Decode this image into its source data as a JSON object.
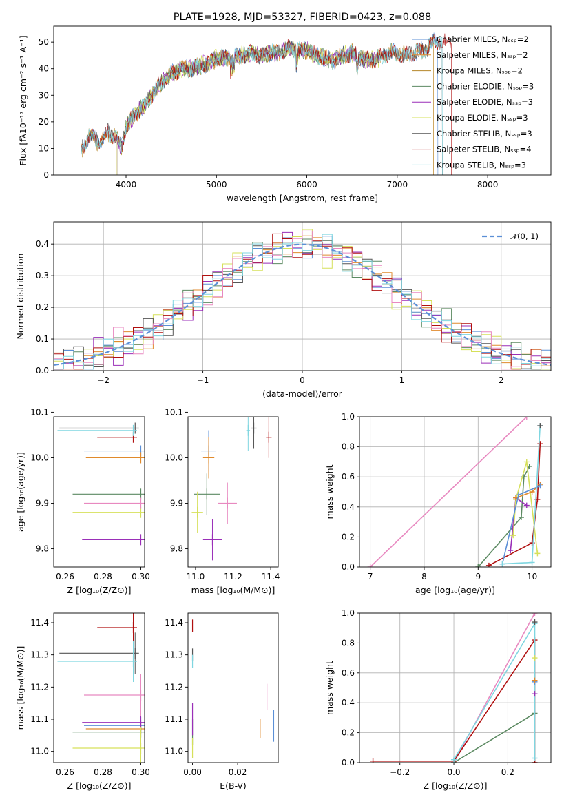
{
  "chart_data": [
    {
      "panel": "spectrum",
      "type": "line",
      "title": "PLATE=1928, MJD=53327, FIBERID=0423, z=0.088",
      "xlabel": "wavelength [Angstrom, rest frame]",
      "ylabel": "Flux [fλ10⁻¹⁷ erg cm⁻² s⁻¹ A⁻¹]",
      "xlim": [
        3200,
        8700
      ],
      "ylim": [
        0,
        56
      ],
      "xticks": [
        4000,
        5000,
        6000,
        7000,
        8000
      ],
      "yticks": [
        0,
        10,
        20,
        30,
        40,
        50
      ],
      "x": [
        3500,
        3600,
        3700,
        3800,
        3900,
        3950,
        4000,
        4100,
        4200,
        4300,
        4400,
        4500,
        4600,
        4700,
        4800,
        4900,
        5000,
        5100,
        5200,
        5300,
        5400,
        5500,
        5600,
        5700,
        5800,
        5900,
        6000,
        6100,
        6200,
        6300,
        6400,
        6500,
        6600,
        6700,
        6800,
        6900,
        7000,
        7100,
        7200,
        7300,
        7400,
        7500,
        7600
      ],
      "series": [
        {
          "name": "Chabrier MILES, Nₛₛₚ=2",
          "color": "#5b8fd6",
          "x_start": 3500,
          "x_end": 7450
        },
        {
          "name": "Salpeter MILES, Nₛₛₚ=2",
          "color": "#e08a2c",
          "x_start": 3500,
          "x_end": 7400
        },
        {
          "name": "Kroupa MILES, Nₛₛₚ=2",
          "color": "#b5862a",
          "x_start": 3500,
          "x_end": 7400
        },
        {
          "name": "Chabrier ELODIE, Nₛₛₚ=3",
          "color": "#5c8a62",
          "x_start": 3900,
          "x_end": 6800
        },
        {
          "name": "Salpeter ELODIE, Nₛₛₚ=3",
          "color": "#9a2fb8",
          "x_start": 3900,
          "x_end": 6800
        },
        {
          "name": "Kroupa ELODIE, Nₛₛₚ=3",
          "color": "#d6e05a",
          "x_start": 3900,
          "x_end": 6800
        },
        {
          "name": "Chabrier STELIB, Nₛₛₚ=3",
          "color": "#555555",
          "x_start": 3500,
          "x_end": 7500
        },
        {
          "name": "Salpeter STELIB, Nₛₛₚ=4",
          "color": "#b01010",
          "x_start": 3500,
          "x_end": 7600
        },
        {
          "name": "Kroupa STELIB, Nₛₛₚ=3",
          "color": "#7fd6e0",
          "x_start": 3500,
          "x_end": 7500
        }
      ],
      "flux": [
        9,
        15,
        12,
        16,
        14,
        10,
        18,
        23,
        26,
        31,
        35,
        38,
        40,
        40,
        41,
        42,
        44,
        44,
        45,
        45,
        46,
        45,
        46,
        46,
        48,
        47,
        47,
        45,
        44,
        43,
        45,
        46,
        44,
        43,
        44,
        46,
        46,
        45,
        46,
        47,
        50,
        50,
        49
      ],
      "legend": "upper right"
    },
    {
      "panel": "residuals",
      "type": "line",
      "xlabel": "(data-model)/error",
      "ylabel": "Normed distribution",
      "xlim": [
        -2.5,
        2.5
      ],
      "ylim": [
        0,
        0.47
      ],
      "xticks": [
        -2,
        -1,
        0,
        1,
        2
      ],
      "yticks": [
        0.0,
        0.1,
        0.2,
        0.3,
        0.4
      ],
      "grid": true,
      "reference": {
        "name": "𝒩(0, 1)",
        "color": "#5b8fd6",
        "style": "dashed",
        "mean": 0,
        "sd": 1
      },
      "hist_edges_start": -2.5,
      "hist_bin_width": 0.1,
      "histograms": [
        {
          "color": "#5b8fd6",
          "offset": 0.0
        },
        {
          "color": "#e08a2c",
          "offset": 0.01
        },
        {
          "color": "#5c8a62",
          "offset": -0.015
        },
        {
          "color": "#9a2fb8",
          "offset": 0.02
        },
        {
          "color": "#d6e05a",
          "offset": -0.02
        },
        {
          "color": "#555555",
          "offset": 0.012
        },
        {
          "color": "#b01010",
          "offset": -0.01
        },
        {
          "color": "#e889c0",
          "offset": 0.025
        },
        {
          "color": "#7fd6e0",
          "offset": -0.005
        }
      ],
      "legend": "upper right"
    },
    {
      "panel": "age-vs-Z",
      "type": "scatter",
      "xlabel": "Z [log₁₀(Z/Z⊙)]",
      "ylabel": "age  [log₁₀(age/yr)]",
      "xlim": [
        0.254,
        0.302
      ],
      "ylim": [
        9.76,
        10.09
      ],
      "xticks": [
        0.26,
        0.28,
        0.3
      ],
      "yticks": [
        9.8,
        9.9,
        10.0,
        10.1
      ],
      "points": [
        {
          "color": "#5b8fd6",
          "x": 0.3,
          "y": 10.015,
          "xerr": 0.03
        },
        {
          "color": "#e08a2c",
          "x": 0.3,
          "y": 10.0,
          "xerr": 0.029
        },
        {
          "color": "#5c8a62",
          "x": 0.3,
          "y": 9.92,
          "xerr": 0.036
        },
        {
          "color": "#9a2fb8",
          "x": 0.3,
          "y": 9.82,
          "xerr": 0.031
        },
        {
          "color": "#d6e05a",
          "x": 0.3,
          "y": 9.88,
          "xerr": 0.036
        },
        {
          "color": "#555555",
          "x": 0.297,
          "y": 10.065,
          "xerr": 0.04
        },
        {
          "color": "#b01010",
          "x": 0.296,
          "y": 10.045,
          "xerr": 0.019
        },
        {
          "color": "#e889c0",
          "x": 0.3,
          "y": 9.9,
          "xerr": 0.03
        },
        {
          "color": "#7fd6e0",
          "x": 0.296,
          "y": 10.06,
          "xerr": 0.04
        }
      ]
    },
    {
      "panel": "age-vs-mass",
      "type": "scatter",
      "xlabel": "mass [log₁₀(M/M⊙)]",
      "ylabel": "",
      "xlim": [
        10.96,
        11.44
      ],
      "ylim": [
        9.76,
        10.09
      ],
      "xticks": [
        11.0,
        11.2,
        11.4
      ],
      "yticks": [
        9.8,
        9.9,
        10.0,
        10.1
      ],
      "points": [
        {
          "color": "#5b8fd6",
          "x": 11.07,
          "y": 10.015,
          "xerr": 0.04
        },
        {
          "color": "#e08a2c",
          "x": 11.07,
          "y": 10.0,
          "xerr": 0.03
        },
        {
          "color": "#5c8a62",
          "x": 11.06,
          "y": 9.92,
          "xerr": 0.07
        },
        {
          "color": "#9a2fb8",
          "x": 11.09,
          "y": 9.82,
          "xerr": 0.05
        },
        {
          "color": "#d6e05a",
          "x": 11.01,
          "y": 9.88,
          "xerr": 0.03
        },
        {
          "color": "#555555",
          "x": 11.31,
          "y": 10.065,
          "xerr": 0.015
        },
        {
          "color": "#b01010",
          "x": 11.39,
          "y": 10.045,
          "xerr": 0.015
        },
        {
          "color": "#e889c0",
          "x": 11.17,
          "y": 9.9,
          "xerr": 0.05
        },
        {
          "color": "#7fd6e0",
          "x": 11.28,
          "y": 10.06,
          "xerr": 0.01
        }
      ]
    },
    {
      "panel": "weight-vs-age",
      "type": "line",
      "xlabel": "age  [log₁₀(age/yr)]",
      "ylabel": "mass weight",
      "xlim": [
        6.8,
        10.35
      ],
      "ylim": [
        0,
        1
      ],
      "xticks": [
        7,
        8,
        9,
        10
      ],
      "yticks": [
        0.0,
        0.2,
        0.4,
        0.6,
        0.8,
        1.0
      ],
      "grid": true,
      "series": [
        {
          "color": "#e889c0",
          "x": [
            7.0,
            9.9
          ],
          "y": [
            0.0,
            1.0
          ]
        },
        {
          "color": "#5c8a62",
          "x": [
            9.0,
            9.8,
            9.85,
            9.95
          ],
          "y": [
            0.0,
            0.33,
            0.6,
            0.67
          ]
        },
        {
          "color": "#b01010",
          "x": [
            9.2,
            10.0,
            10.1,
            10.15
          ],
          "y": [
            0.01,
            0.16,
            0.45,
            0.82
          ]
        },
        {
          "color": "#9a2fb8",
          "x": [
            9.6,
            9.7,
            9.9
          ],
          "y": [
            0.11,
            0.46,
            0.41
          ]
        },
        {
          "color": "#d6e05a",
          "x": [
            9.65,
            9.7,
            9.9,
            10.1
          ],
          "y": [
            0.21,
            0.45,
            0.7,
            0.09
          ]
        },
        {
          "color": "#e08a2c",
          "x": [
            9.7,
            10.0,
            10.15
          ],
          "y": [
            0.46,
            0.5,
            0.55
          ]
        },
        {
          "color": "#5b8fd6",
          "x": [
            9.45,
            9.75,
            10.15
          ],
          "y": [
            0.02,
            0.48,
            0.54
          ]
        },
        {
          "color": "#7fd6e0",
          "x": [
            9.45,
            10.0,
            10.15
          ],
          "y": [
            0.02,
            0.03,
            0.94
          ]
        },
        {
          "color": "#555555",
          "x": [
            10.15
          ],
          "y": [
            0.94
          ]
        }
      ]
    },
    {
      "panel": "mass-vs-Z",
      "type": "scatter",
      "xlabel": "Z [log₁₀(Z/Z⊙)]",
      "ylabel": "mass [log₁₀(M/M⊙)]",
      "xlim": [
        0.254,
        0.302
      ],
      "ylim": [
        10.965,
        11.43
      ],
      "xticks": [
        0.26,
        0.28,
        0.3
      ],
      "yticks": [
        11.0,
        11.1,
        11.2,
        11.3,
        11.4
      ],
      "points": [
        {
          "color": "#5b8fd6",
          "x": 0.3,
          "y": 11.08,
          "xerr": 0.03
        },
        {
          "color": "#e08a2c",
          "x": 0.3,
          "y": 11.07,
          "xerr": 0.029
        },
        {
          "color": "#5c8a62",
          "x": 0.3,
          "y": 11.06,
          "xerr": 0.036
        },
        {
          "color": "#9a2fb8",
          "x": 0.3,
          "y": 11.09,
          "xerr": 0.031
        },
        {
          "color": "#d6e05a",
          "x": 0.3,
          "y": 11.01,
          "xerr": 0.036
        },
        {
          "color": "#555555",
          "x": 0.297,
          "y": 11.305,
          "xerr": 0.04
        },
        {
          "color": "#b01010",
          "x": 0.296,
          "y": 11.385,
          "xerr": 0.019
        },
        {
          "color": "#e889c0",
          "x": 0.3,
          "y": 11.175,
          "xerr": 0.03
        },
        {
          "color": "#7fd6e0",
          "x": 0.296,
          "y": 11.28,
          "xerr": 0.04
        }
      ]
    },
    {
      "panel": "mass-vs-EBV",
      "type": "scatter",
      "xlabel": "E(B-V)",
      "ylabel": "",
      "xlim": [
        -0.002,
        0.038
      ],
      "ylim": [
        10.965,
        11.43
      ],
      "xticks": [
        0.0,
        0.02
      ],
      "yticks": [
        11.0,
        11.1,
        11.2,
        11.3,
        11.4
      ],
      "points": [
        {
          "color": "#5b8fd6",
          "x": 0.036,
          "y": 11.08,
          "yerr": 0.05
        },
        {
          "color": "#e08a2c",
          "x": 0.03,
          "y": 11.07,
          "yerr": 0.03
        },
        {
          "color": "#5c8a62",
          "x": 0.0,
          "y": 11.06,
          "yerr": 0.04
        },
        {
          "color": "#9a2fb8",
          "x": 0.0,
          "y": 11.1,
          "yerr": 0.05
        },
        {
          "color": "#d6e05a",
          "x": 0.0,
          "y": 11.01,
          "yerr": 0.03
        },
        {
          "color": "#555555",
          "x": 0.0,
          "y": 11.3,
          "yerr": 0.02
        },
        {
          "color": "#b01010",
          "x": 0.0,
          "y": 11.39,
          "yerr": 0.02
        },
        {
          "color": "#e889c0",
          "x": 0.033,
          "y": 11.17,
          "yerr": 0.04
        },
        {
          "color": "#7fd6e0",
          "x": 0.0,
          "y": 11.28,
          "yerr": 0.02
        }
      ]
    },
    {
      "panel": "weight-vs-Z",
      "type": "line",
      "xlabel": "Z [log₁₀(Z/Z⊙)]",
      "ylabel": "mass weight",
      "xlim": [
        -0.35,
        0.36
      ],
      "ylim": [
        0,
        1
      ],
      "xticks": [
        -0.2,
        0.0,
        0.2
      ],
      "yticks": [
        0.0,
        0.2,
        0.4,
        0.6,
        0.8,
        1.0
      ],
      "grid": true,
      "series": [
        {
          "color": "#e889c0",
          "x": [
            0.0,
            0.3
          ],
          "y": [
            0.0,
            1.0
          ]
        },
        {
          "color": "#5c8a62",
          "x": [
            0.0,
            0.3
          ],
          "y": [
            0.0,
            0.33
          ]
        },
        {
          "color": "#b01010",
          "x": [
            -0.3,
            0.0,
            0.3,
            0.3
          ],
          "y": [
            0.01,
            0.01,
            0.82,
            0.0
          ]
        },
        {
          "color": "#7fd6e0",
          "x": [
            0.0,
            0.3,
            0.3
          ],
          "y": [
            0.02,
            0.93,
            0.03
          ]
        },
        {
          "color": "#555555",
          "x": [
            0.3
          ],
          "y": [
            0.94
          ]
        },
        {
          "color": "#5b8fd6",
          "x": [
            0.3
          ],
          "y": [
            0.54
          ]
        },
        {
          "color": "#e08a2c",
          "x": [
            0.3
          ],
          "y": [
            0.55
          ]
        },
        {
          "color": "#9a2fb8",
          "x": [
            0.3
          ],
          "y": [
            0.46
          ]
        },
        {
          "color": "#d6e05a",
          "x": [
            0.3
          ],
          "y": [
            0.7
          ]
        }
      ]
    }
  ]
}
